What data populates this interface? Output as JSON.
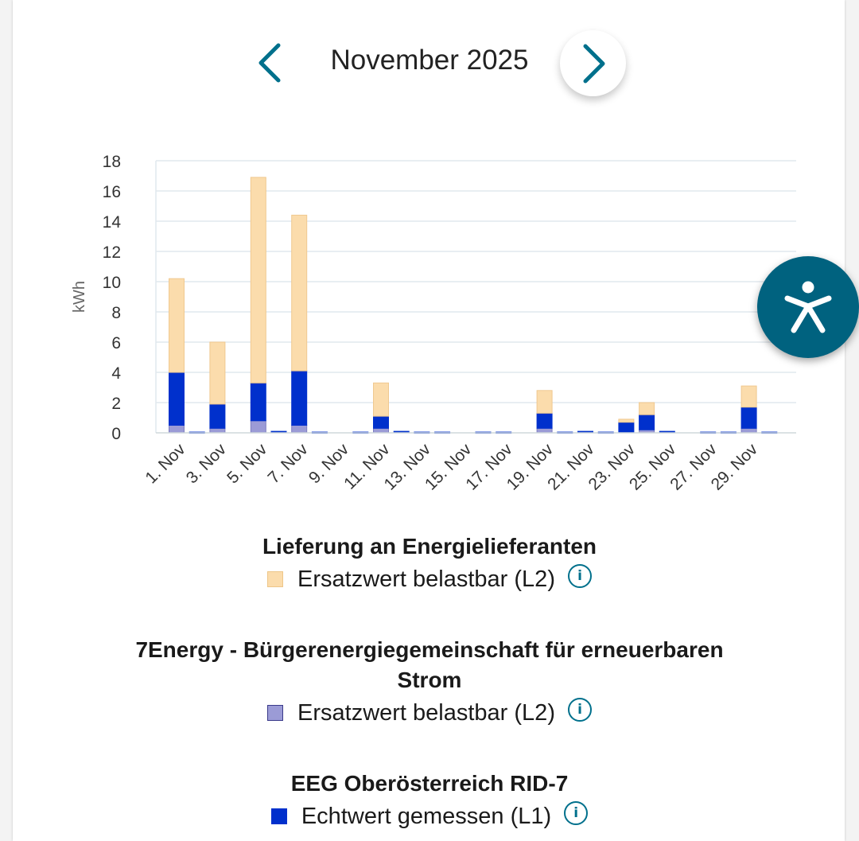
{
  "header": {
    "month_label": "November 2025",
    "prev_icon": "chevron-left-icon",
    "next_icon": "chevron-right-icon"
  },
  "chart_data": {
    "type": "bar",
    "stacked": true,
    "ylabel": "kWh",
    "ylim": [
      0,
      18
    ],
    "yticks": [
      0,
      2,
      4,
      6,
      8,
      10,
      12,
      14,
      16,
      18
    ],
    "grid": true,
    "categories": [
      "1. Nov",
      "2. Nov",
      "3. Nov",
      "4. Nov",
      "5. Nov",
      "6. Nov",
      "7. Nov",
      "8. Nov",
      "9. Nov",
      "10. Nov",
      "11. Nov",
      "12. Nov",
      "13. Nov",
      "14. Nov",
      "15. Nov",
      "16. Nov",
      "17. Nov",
      "18. Nov",
      "19. Nov",
      "20. Nov",
      "21. Nov",
      "22. Nov",
      "23. Nov",
      "24. Nov",
      "25. Nov",
      "26. Nov",
      "27. Nov",
      "28. Nov",
      "29. Nov",
      "30. Nov"
    ],
    "visible_tick_labels": [
      "1. Nov",
      "3. Nov",
      "5. Nov",
      "7. Nov",
      "9. Nov",
      "11. Nov",
      "13. Nov",
      "15. Nov",
      "17. Nov",
      "19. Nov",
      "21. Nov",
      "23. Nov",
      "25. Nov",
      "27. Nov",
      "29. Nov"
    ],
    "series": [
      {
        "name": "Ersatzwert belastbar (L2)",
        "group": "7Energy - Bürgerenergiegemeinschaft für erneuerbaren Strom",
        "color": "#9b9bd6",
        "values": [
          0.5,
          0,
          0.3,
          0,
          0.8,
          0,
          0.5,
          0,
          0,
          0,
          0.3,
          0,
          0,
          0,
          0,
          0,
          0,
          0,
          0.3,
          0,
          0,
          0,
          0,
          0.2,
          0,
          0,
          0,
          0,
          0.3,
          0
        ]
      },
      {
        "name": "Echtwert gemessen (L1)",
        "group": "EEG Oberösterreich RID-7",
        "color": "#0030cc",
        "values": [
          3.5,
          0.05,
          1.6,
          0,
          2.5,
          0.1,
          3.6,
          0.05,
          0,
          0.05,
          0.8,
          0.1,
          0.05,
          0.05,
          0,
          0.05,
          0.05,
          0,
          1.0,
          0.05,
          0.1,
          0.05,
          0.7,
          1.0,
          0.1,
          0,
          0.05,
          0.05,
          1.4,
          0.05
        ]
      },
      {
        "name": "Ersatzwert belastbar (L2)",
        "group": "Lieferung an Energielieferanten",
        "color": "#fbdcac",
        "values": [
          6.2,
          0,
          4.1,
          0,
          13.6,
          0,
          10.3,
          0,
          0,
          0,
          2.2,
          0,
          0,
          0,
          0,
          0,
          0,
          0,
          1.5,
          0,
          0,
          0,
          0.2,
          0.8,
          0,
          0,
          0,
          0,
          1.4,
          0
        ]
      }
    ]
  },
  "legend": {
    "groups": [
      {
        "title": "Lieferung an Energielieferanten",
        "item_label": "Ersatzwert belastbar (L2)",
        "color": "#fbdcac",
        "border": "#eec688"
      },
      {
        "title": "7Energy - Bürgerenergiegemeinschaft für erneuerbaren",
        "title_line2": "Strom",
        "item_label": "Ersatzwert belastbar (L2)",
        "color": "#9b9bd6",
        "border": "#3a3a8a"
      },
      {
        "title": "EEG Oberösterreich RID-7",
        "item_label": "Echtwert gemessen (L1)",
        "color": "#0030cc",
        "border": "#0030cc"
      }
    ],
    "info_glyph": "i"
  },
  "accessibility": {
    "icon": "accessibility-person-icon",
    "color": "#00627f"
  }
}
